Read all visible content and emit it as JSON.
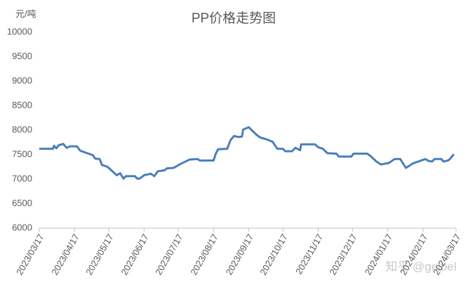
{
  "chart_data": {
    "type": "line",
    "title": "PP价格走势图",
    "y_label": "元/吨",
    "watermark": "知乎 @geibel",
    "x": [
      "2023/03/17",
      "2023/03/29",
      "2023/03/30",
      "2023/04/01",
      "2023/04/03",
      "2023/04/07",
      "2023/04/10",
      "2023/04/13",
      "2023/04/19",
      "2023/04/22",
      "2023/04/28",
      "2023/05/03",
      "2023/05/05",
      "2023/05/09",
      "2023/05/11",
      "2023/05/16",
      "2023/05/24",
      "2023/05/27",
      "2023/05/30",
      "2023/06/01",
      "2023/06/09",
      "2023/06/11",
      "2023/06/13",
      "2023/06/17",
      "2023/06/23",
      "2023/06/26",
      "2023/06/29",
      "2023/07/05",
      "2023/07/07",
      "2023/07/13",
      "2023/07/19",
      "2023/07/27",
      "2023/08/03",
      "2023/08/05",
      "2023/08/17",
      "2023/08/19",
      "2023/08/21",
      "2023/08/29",
      "2023/09/01",
      "2023/09/04",
      "2023/09/08",
      "2023/09/11",
      "2023/09/12",
      "2023/09/17",
      "2023/09/20",
      "2023/09/24",
      "2023/09/27",
      "2023/10/03",
      "2023/10/08",
      "2023/10/12",
      "2023/10/17",
      "2023/10/19",
      "2023/10/25",
      "2023/10/28",
      "2023/11/01",
      "2023/11/02",
      "2023/11/14",
      "2023/11/17",
      "2023/11/21",
      "2023/11/25",
      "2023/12/03",
      "2023/12/05",
      "2023/12/16",
      "2023/12/18",
      "2023/12/30",
      "2024/01/02",
      "2024/01/07",
      "2024/01/11",
      "2024/01/18",
      "2024/01/23",
      "2024/01/28",
      "2024/01/31",
      "2024/02/02",
      "2024/02/08",
      "2024/02/19",
      "2024/02/22",
      "2024/02/25",
      "2024/02/27",
      "2024/03/04",
      "2024/03/06",
      "2024/03/10",
      "2024/03/12",
      "2024/03/15"
    ],
    "series": [
      {
        "name": "PP",
        "color": "#4a7ebb",
        "values": [
          7620,
          7620,
          7680,
          7630,
          7690,
          7720,
          7640,
          7670,
          7670,
          7580,
          7530,
          7490,
          7420,
          7410,
          7290,
          7250,
          7080,
          7120,
          7010,
          7060,
          7060,
          7010,
          7010,
          7080,
          7110,
          7060,
          7160,
          7180,
          7220,
          7230,
          7310,
          7400,
          7410,
          7380,
          7380,
          7520,
          7610,
          7620,
          7800,
          7880,
          7860,
          7870,
          8010,
          8060,
          7990,
          7900,
          7850,
          7810,
          7760,
          7620,
          7620,
          7570,
          7570,
          7640,
          7590,
          7710,
          7710,
          7650,
          7620,
          7530,
          7520,
          7460,
          7460,
          7520,
          7520,
          7470,
          7360,
          7300,
          7330,
          7410,
          7410,
          7300,
          7230,
          7320,
          7410,
          7370,
          7360,
          7410,
          7410,
          7360,
          7380,
          7420,
          7510
        ]
      }
    ],
    "xlim": [
      "2023/03/17",
      "2024/03/17"
    ],
    "xticks": [
      "2023/03/17",
      "2023/04/17",
      "2023/05/17",
      "2023/06/17",
      "2023/07/17",
      "2023/08/17",
      "2023/09/17",
      "2023/10/17",
      "2023/11/17",
      "2023/12/17",
      "2024/01/17",
      "2024/02/17",
      "2024/03/17"
    ],
    "ylim": [
      6000,
      10000
    ],
    "yticks": [
      6000,
      6500,
      7000,
      7500,
      8000,
      8500,
      9000,
      9500,
      10000
    ],
    "grid": false
  }
}
